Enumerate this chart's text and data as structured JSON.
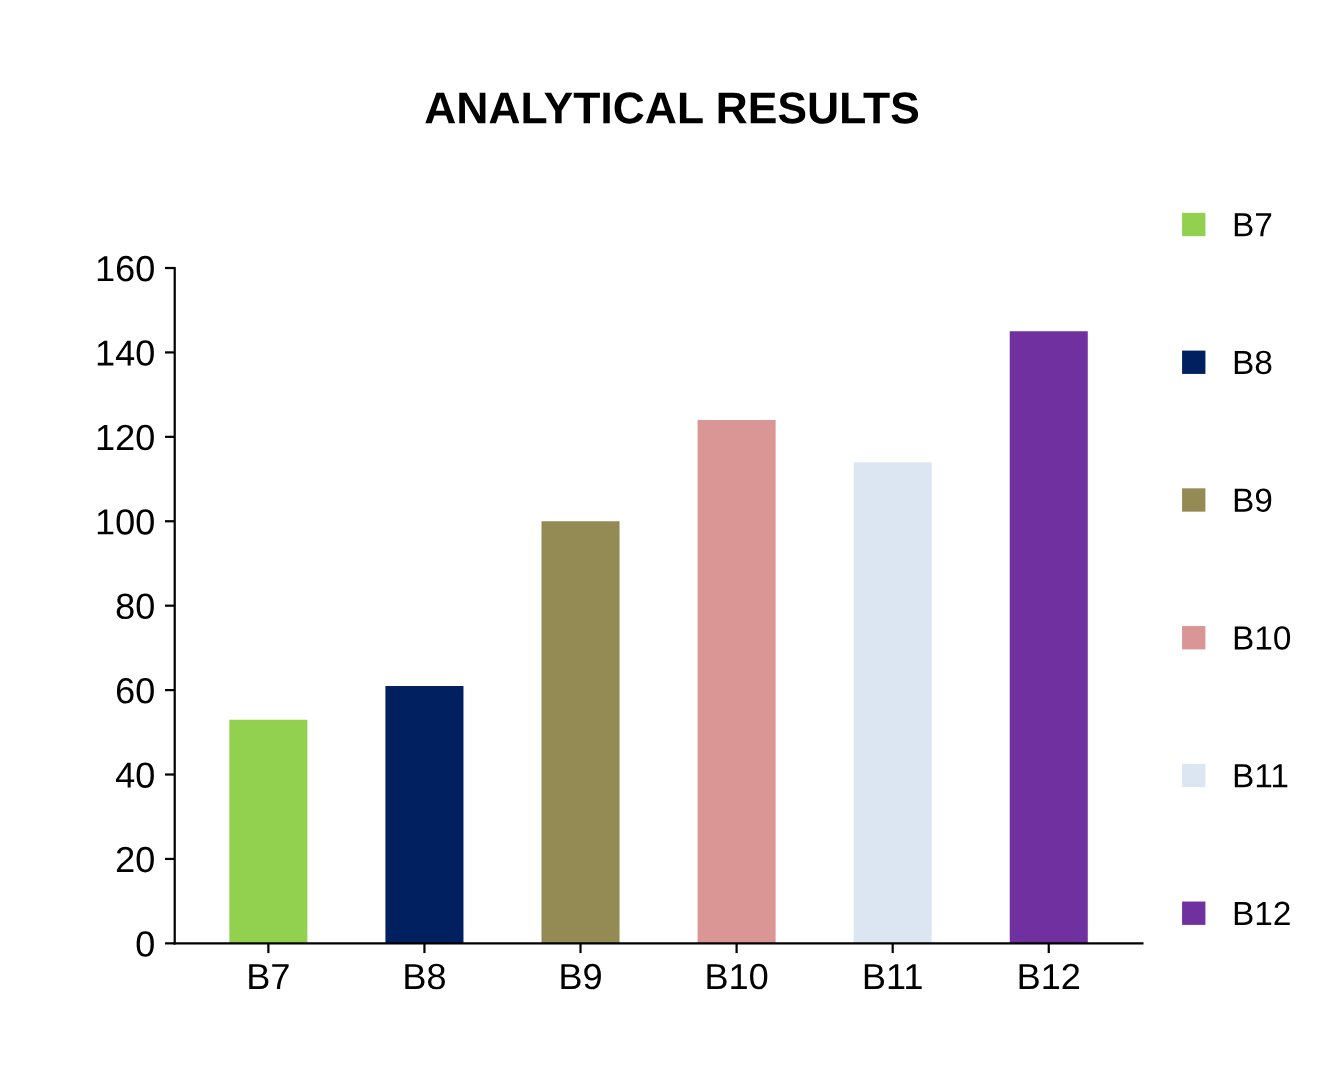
{
  "chart_data": {
    "type": "bar",
    "title": "ANALYTICAL RESULTS",
    "categories": [
      "B7",
      "B8",
      "B9",
      "B10",
      "B11",
      "B12"
    ],
    "series": [
      {
        "name": "B7",
        "color": "#92d050",
        "values": [
          53,
          null,
          null,
          null,
          null,
          null
        ]
      },
      {
        "name": "B8",
        "color": "#002060",
        "values": [
          null,
          61,
          null,
          null,
          null,
          null
        ]
      },
      {
        "name": "B9",
        "color": "#948a54",
        "values": [
          null,
          null,
          100,
          null,
          null,
          null
        ]
      },
      {
        "name": "B10",
        "color": "#d99694",
        "values": [
          null,
          null,
          null,
          124,
          null,
          null
        ]
      },
      {
        "name": "B11",
        "color": "#dce6f2",
        "values": [
          null,
          null,
          null,
          null,
          114,
          null
        ]
      },
      {
        "name": "B12",
        "color": "#7030a0",
        "values": [
          null,
          null,
          null,
          null,
          null,
          145
        ]
      }
    ],
    "ylim": [
      0,
      160
    ],
    "yticks": [
      0,
      20,
      40,
      60,
      80,
      100,
      120,
      140,
      160
    ],
    "grid": false,
    "legend": "right"
  }
}
